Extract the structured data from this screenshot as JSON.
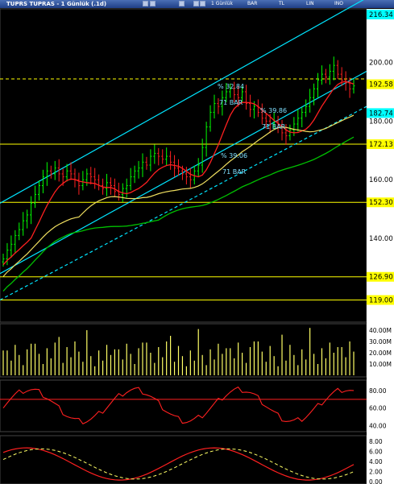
{
  "window": {
    "title": "TUPRS TUPRAS - 1 Günlük (.1d)",
    "toolbar": {
      "period": "1 Günlük",
      "style": "BAR",
      "currency": "TL",
      "scale": "LIN",
      "index": "INO"
    }
  },
  "chart_data": [
    {
      "type": "candlestick",
      "ylim": [
        119,
        216
      ],
      "yticks": [
        "200.00",
        "180.00",
        "160.00",
        "140.00"
      ],
      "price_labels": [
        {
          "label": "216.34",
          "value": 216.34,
          "color": "#00ffff"
        },
        {
          "label": "192.58",
          "value": 192.58,
          "color": "#ffff00"
        },
        {
          "label": "182.74",
          "value": 182.74,
          "color": "#00ffff"
        },
        {
          "label": "172.13",
          "value": 172.13,
          "color": "#ffff00"
        },
        {
          "label": "152.30",
          "value": 152.3,
          "color": "#ffff00"
        },
        {
          "label": "126.90",
          "value": 126.9,
          "color": "#ffff00"
        },
        {
          "label": "119.00",
          "value": 119.0,
          "color": "#ffff00"
        }
      ],
      "horizontal_lines": [
        194.4,
        172.13,
        152.3,
        126.9,
        119.0
      ],
      "annotations": [
        {
          "text": "% 32.84",
          "sub": "71 BAR"
        },
        {
          "text": "% 39.86",
          "sub": "71 BAR"
        },
        {
          "text": "% 39.06",
          "sub": "71 BAR"
        }
      ],
      "ohlc_close": [
        133,
        136,
        138,
        141,
        143,
        146,
        148,
        152,
        155,
        158,
        161,
        163,
        162,
        164,
        162,
        161,
        163,
        162,
        160,
        158,
        160,
        162,
        161,
        160,
        158,
        157,
        159,
        158,
        156,
        155,
        157,
        158,
        161,
        163,
        164,
        166,
        165,
        168,
        169,
        168,
        167,
        168,
        166,
        164,
        163,
        162,
        161,
        160,
        163,
        165,
        171,
        178,
        183,
        186,
        185,
        188,
        190,
        191,
        189,
        188,
        190,
        186,
        184,
        185,
        183,
        181,
        180,
        179,
        180,
        178,
        176,
        175,
        177,
        179,
        181,
        183,
        185,
        188,
        191,
        194,
        196,
        195,
        197,
        199,
        196,
        194,
        193,
        191,
        192
      ]
    },
    {
      "type": "bar",
      "yticks": [
        "40.00M",
        "30.00M",
        "20.00M",
        "10.00M"
      ],
      "ylim": [
        0,
        45
      ]
    },
    {
      "type": "line",
      "yticks": [
        "80.00",
        "60.00",
        "40.00"
      ],
      "ylim": [
        35,
        90
      ]
    },
    {
      "type": "line",
      "yticks": [
        "8.00",
        "6.00",
        "4.00",
        "2.00",
        "0.00"
      ],
      "ylim": [
        0,
        8
      ]
    }
  ]
}
